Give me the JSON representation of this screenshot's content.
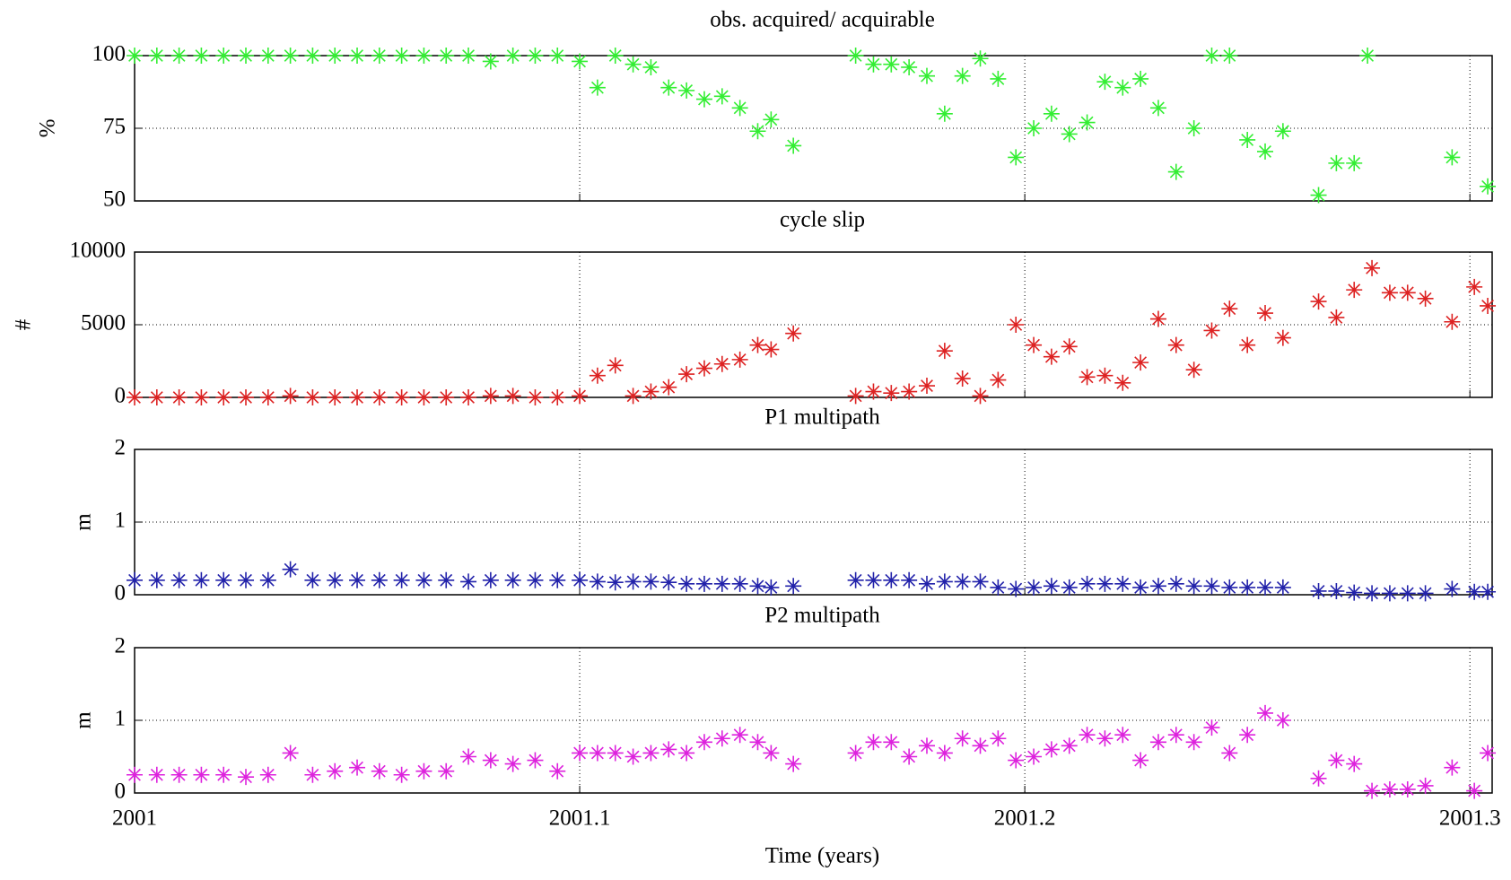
{
  "chart_data": [
    {
      "type": "scatter",
      "title": "obs. acquired/ acquirable",
      "y_label": "%",
      "color": "#33ee33",
      "marker": "*",
      "x": [
        2001.0,
        2001.005,
        2001.01,
        2001.015,
        2001.02,
        2001.025,
        2001.03,
        2001.035,
        2001.04,
        2001.045,
        2001.05,
        2001.055,
        2001.06,
        2001.065,
        2001.07,
        2001.075,
        2001.08,
        2001.085,
        2001.09,
        2001.095,
        2001.1,
        2001.104,
        2001.108,
        2001.112,
        2001.116,
        2001.12,
        2001.124,
        2001.128,
        2001.132,
        2001.136,
        2001.14,
        2001.143,
        2001.148,
        2001.162,
        2001.166,
        2001.17,
        2001.174,
        2001.178,
        2001.182,
        2001.186,
        2001.19,
        2001.194,
        2001.198,
        2001.202,
        2001.206,
        2001.21,
        2001.214,
        2001.218,
        2001.222,
        2001.226,
        2001.23,
        2001.234,
        2001.238,
        2001.242,
        2001.246,
        2001.25,
        2001.254,
        2001.258,
        2001.266,
        2001.27,
        2001.274,
        2001.277,
        2001.296,
        2001.304
      ],
      "values": [
        100,
        100,
        100,
        100,
        100,
        100,
        100,
        100,
        100,
        100,
        100,
        100,
        100,
        100,
        100,
        100,
        98,
        100,
        100,
        100,
        98,
        89,
        100,
        97,
        96,
        89,
        88,
        85,
        86,
        82,
        74,
        78,
        69,
        100,
        97,
        97,
        96,
        93,
        80,
        93,
        99,
        92,
        65,
        75,
        80,
        73,
        77,
        91,
        89,
        92,
        82,
        60,
        75,
        100,
        100,
        71,
        67,
        74,
        52,
        63,
        63,
        100,
        65,
        55
      ],
      "xlim": [
        2001,
        2001.305
      ],
      "xticks": [
        2001,
        2001.1,
        2001.2,
        2001.3
      ],
      "ylim": [
        50,
        100
      ],
      "yticks": [
        50,
        75,
        100
      ],
      "grid": true
    },
    {
      "type": "scatter",
      "title": "cycle slip",
      "y_label": "#",
      "color": "#dd2222",
      "marker": "*",
      "x": [
        2001.0,
        2001.005,
        2001.01,
        2001.015,
        2001.02,
        2001.025,
        2001.03,
        2001.035,
        2001.04,
        2001.045,
        2001.05,
        2001.055,
        2001.06,
        2001.065,
        2001.07,
        2001.075,
        2001.08,
        2001.085,
        2001.09,
        2001.095,
        2001.1,
        2001.104,
        2001.108,
        2001.112,
        2001.116,
        2001.12,
        2001.124,
        2001.128,
        2001.132,
        2001.136,
        2001.14,
        2001.143,
        2001.148,
        2001.162,
        2001.166,
        2001.17,
        2001.174,
        2001.178,
        2001.182,
        2001.186,
        2001.19,
        2001.194,
        2001.198,
        2001.202,
        2001.206,
        2001.21,
        2001.214,
        2001.218,
        2001.222,
        2001.226,
        2001.23,
        2001.234,
        2001.238,
        2001.242,
        2001.246,
        2001.25,
        2001.254,
        2001.258,
        2001.266,
        2001.27,
        2001.274,
        2001.278,
        2001.282,
        2001.286,
        2001.29,
        2001.296,
        2001.301,
        2001.304
      ],
      "values": [
        0,
        0,
        0,
        0,
        0,
        0,
        0,
        100,
        0,
        0,
        0,
        0,
        0,
        0,
        0,
        0,
        100,
        100,
        0,
        0,
        100,
        1500,
        2200,
        100,
        400,
        700,
        1600,
        2000,
        2300,
        2600,
        3600,
        3300,
        4400,
        100,
        400,
        300,
        400,
        800,
        3200,
        1300,
        100,
        1200,
        5000,
        3600,
        2800,
        3500,
        1400,
        1500,
        1000,
        2400,
        5400,
        3600,
        1900,
        4600,
        6100,
        3600,
        5800,
        4100,
        6600,
        5500,
        7400,
        8900,
        7200,
        7200,
        6800,
        5200,
        7600,
        6300
      ],
      "xlim": [
        2001,
        2001.305
      ],
      "xticks": [
        2001,
        2001.1,
        2001.2,
        2001.3
      ],
      "ylim": [
        0,
        10000
      ],
      "yticks": [
        0,
        5000,
        10000
      ],
      "grid": true
    },
    {
      "type": "scatter",
      "title": "P1 multipath",
      "y_label": "m",
      "color": "#2222aa",
      "marker": "*",
      "x": [
        2001.0,
        2001.005,
        2001.01,
        2001.015,
        2001.02,
        2001.025,
        2001.03,
        2001.035,
        2001.04,
        2001.045,
        2001.05,
        2001.055,
        2001.06,
        2001.065,
        2001.07,
        2001.075,
        2001.08,
        2001.085,
        2001.09,
        2001.095,
        2001.1,
        2001.104,
        2001.108,
        2001.112,
        2001.116,
        2001.12,
        2001.124,
        2001.128,
        2001.132,
        2001.136,
        2001.14,
        2001.143,
        2001.148,
        2001.162,
        2001.166,
        2001.17,
        2001.174,
        2001.178,
        2001.182,
        2001.186,
        2001.19,
        2001.194,
        2001.198,
        2001.202,
        2001.206,
        2001.21,
        2001.214,
        2001.218,
        2001.222,
        2001.226,
        2001.23,
        2001.234,
        2001.238,
        2001.242,
        2001.246,
        2001.25,
        2001.254,
        2001.258,
        2001.266,
        2001.27,
        2001.274,
        2001.278,
        2001.282,
        2001.286,
        2001.29,
        2001.296,
        2001.301,
        2001.304
      ],
      "values": [
        0.2,
        0.2,
        0.2,
        0.2,
        0.2,
        0.2,
        0.2,
        0.35,
        0.2,
        0.2,
        0.2,
        0.2,
        0.2,
        0.2,
        0.2,
        0.18,
        0.2,
        0.2,
        0.2,
        0.2,
        0.2,
        0.18,
        0.17,
        0.18,
        0.18,
        0.17,
        0.15,
        0.15,
        0.15,
        0.15,
        0.12,
        0.1,
        0.12,
        0.2,
        0.2,
        0.2,
        0.2,
        0.15,
        0.18,
        0.18,
        0.18,
        0.1,
        0.08,
        0.1,
        0.12,
        0.1,
        0.15,
        0.15,
        0.15,
        0.1,
        0.12,
        0.15,
        0.12,
        0.12,
        0.1,
        0.1,
        0.1,
        0.1,
        0.05,
        0.05,
        0.03,
        0.02,
        0.02,
        0.02,
        0.02,
        0.08,
        0.04,
        0.04
      ],
      "xlim": [
        2001,
        2001.305
      ],
      "xticks": [
        2001,
        2001.1,
        2001.2,
        2001.3
      ],
      "ylim": [
        0,
        2
      ],
      "yticks": [
        0,
        1,
        2
      ],
      "grid": true
    },
    {
      "type": "scatter",
      "title": "P2 multipath",
      "y_label": "m",
      "x_label": "Time (years)",
      "color": "#dd22dd",
      "marker": "*",
      "x": [
        2001.0,
        2001.005,
        2001.01,
        2001.015,
        2001.02,
        2001.025,
        2001.03,
        2001.035,
        2001.04,
        2001.045,
        2001.05,
        2001.055,
        2001.06,
        2001.065,
        2001.07,
        2001.075,
        2001.08,
        2001.085,
        2001.09,
        2001.095,
        2001.1,
        2001.104,
        2001.108,
        2001.112,
        2001.116,
        2001.12,
        2001.124,
        2001.128,
        2001.132,
        2001.136,
        2001.14,
        2001.143,
        2001.148,
        2001.162,
        2001.166,
        2001.17,
        2001.174,
        2001.178,
        2001.182,
        2001.186,
        2001.19,
        2001.194,
        2001.198,
        2001.202,
        2001.206,
        2001.21,
        2001.214,
        2001.218,
        2001.222,
        2001.226,
        2001.23,
        2001.234,
        2001.238,
        2001.242,
        2001.246,
        2001.25,
        2001.254,
        2001.258,
        2001.266,
        2001.27,
        2001.274,
        2001.278,
        2001.282,
        2001.286,
        2001.29,
        2001.296,
        2001.301,
        2001.304
      ],
      "values": [
        0.25,
        0.25,
        0.25,
        0.25,
        0.25,
        0.22,
        0.25,
        0.55,
        0.25,
        0.3,
        0.35,
        0.3,
        0.25,
        0.3,
        0.3,
        0.5,
        0.45,
        0.4,
        0.45,
        0.3,
        0.55,
        0.55,
        0.55,
        0.5,
        0.55,
        0.6,
        0.55,
        0.7,
        0.75,
        0.8,
        0.7,
        0.55,
        0.4,
        0.55,
        0.7,
        0.7,
        0.5,
        0.65,
        0.55,
        0.75,
        0.65,
        0.75,
        0.45,
        0.5,
        0.6,
        0.65,
        0.8,
        0.75,
        0.8,
        0.45,
        0.7,
        0.8,
        0.7,
        0.9,
        0.55,
        0.8,
        1.1,
        1.0,
        0.2,
        0.45,
        0.4,
        0.03,
        0.05,
        0.05,
        0.1,
        0.35,
        0.03,
        0.55
      ],
      "xlim": [
        2001,
        2001.305
      ],
      "xticks": [
        2001,
        2001.1,
        2001.2,
        2001.3
      ],
      "ylim": [
        0,
        2
      ],
      "yticks": [
        0,
        1,
        2
      ],
      "grid": true
    }
  ]
}
